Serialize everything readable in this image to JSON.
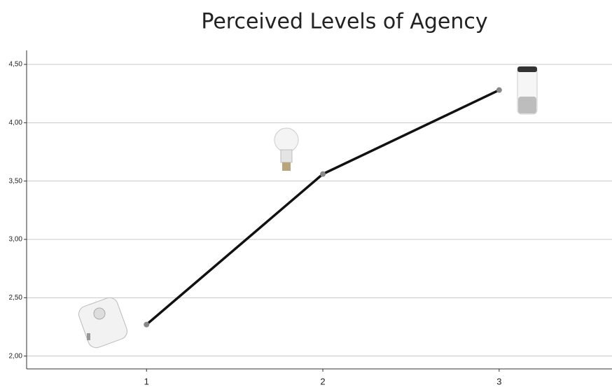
{
  "chart_data": {
    "type": "line",
    "title": "Perceived Levels of Agency",
    "x": [
      1,
      2,
      3
    ],
    "series": [
      {
        "color": "#111111",
        "values": [
          2.27,
          3.56,
          4.28
        ]
      }
    ],
    "xlim": [
      0.32,
      3.64
    ],
    "xticks": [
      1,
      2,
      3
    ],
    "ylim": [
      1.89,
      4.62
    ],
    "yticks": [
      {
        "value": 2,
        "label": "2,00"
      },
      {
        "value": 2.5,
        "label": "2,50"
      },
      {
        "value": 3,
        "label": "3,00"
      },
      {
        "value": 3.5,
        "label": "3,50"
      },
      {
        "value": 4,
        "label": "4,00"
      },
      {
        "value": 4.5,
        "label": "4,50"
      }
    ],
    "grid": true
  }
}
